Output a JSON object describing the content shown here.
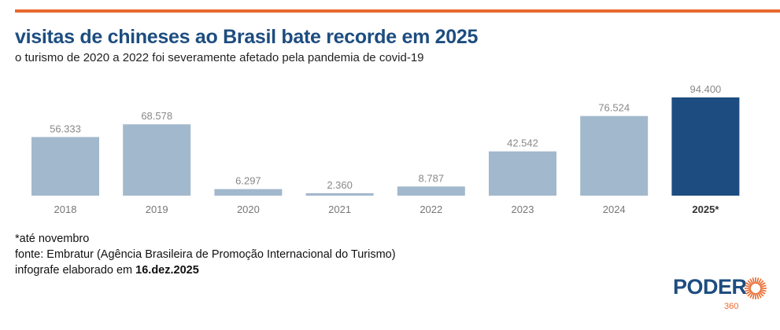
{
  "header": {
    "title": "visitas de chineses ao Brasil bate recorde em 2025",
    "subtitle": "o turismo de 2020 a 2022 foi severamente afetado pela pandemia de covid-19"
  },
  "chart_data": {
    "type": "bar",
    "title": "visitas de chineses ao Brasil bate recorde em 2025",
    "categories": [
      "2018",
      "2019",
      "2020",
      "2021",
      "2022",
      "2023",
      "2024",
      "2025*"
    ],
    "values": [
      56333,
      68578,
      6297,
      2360,
      8787,
      42542,
      76524,
      94400
    ],
    "value_labels": [
      "56.333",
      "68.578",
      "6.297",
      "2.360",
      "8.787",
      "42.542",
      "76.524",
      "94.400"
    ],
    "highlight_index": 7,
    "colors": {
      "default": "#a2b8cc",
      "highlight": "#1d4d80"
    },
    "ylim": [
      0,
      94400
    ],
    "grid": false,
    "xlabel": "",
    "ylabel": ""
  },
  "footer": {
    "note": "*até novembro",
    "source": "fonte: Embratur (Agência Brasileira de Promoção Internacional do Turismo)",
    "made_prefix": "infografe elaborado em ",
    "made_date": "16.dez.2025"
  },
  "logo": {
    "text": "PODER",
    "number": "360"
  }
}
